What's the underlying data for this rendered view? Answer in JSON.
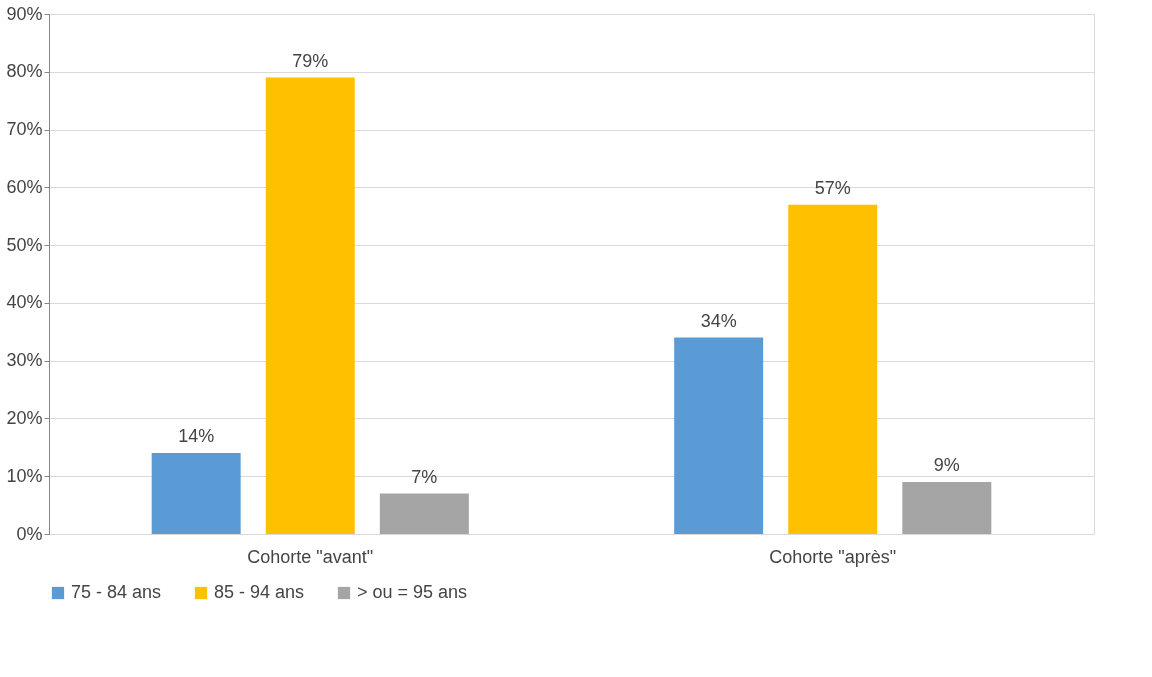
{
  "chart_data": {
    "type": "bar",
    "categories": [
      "Cohorte \"avant\"",
      "Cohorte \"après\""
    ],
    "series": [
      {
        "name": "75 - 84 ans",
        "color": "#5b9bd5",
        "values": [
          14,
          34
        ],
        "value_labels": [
          "14%",
          "34%"
        ]
      },
      {
        "name": "85 - 94 ans",
        "color": "#ffc000",
        "values": [
          79,
          57
        ],
        "value_labels": [
          "79%",
          "57%"
        ]
      },
      {
        "name": "> ou = 95 ans",
        "color": "#a5a5a5",
        "values": [
          7,
          9
        ],
        "value_labels": [
          "7%",
          "9%"
        ]
      }
    ],
    "ylim": [
      0,
      90
    ],
    "yticks": [
      {
        "value": 0,
        "label": "0%"
      },
      {
        "value": 10,
        "label": "10%"
      },
      {
        "value": 20,
        "label": "20%"
      },
      {
        "value": 30,
        "label": "30%"
      },
      {
        "value": 40,
        "label": "40%"
      },
      {
        "value": 50,
        "label": "50%"
      },
      {
        "value": 60,
        "label": "60%"
      },
      {
        "value": 70,
        "label": "70%"
      },
      {
        "value": 80,
        "label": "80%"
      },
      {
        "value": 90,
        "label": "90%"
      }
    ],
    "grid": "y",
    "legend": "bottom"
  }
}
